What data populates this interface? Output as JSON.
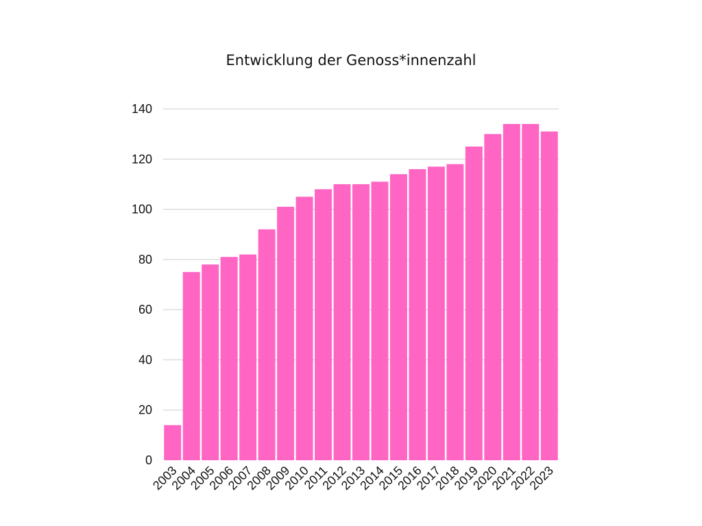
{
  "chart_data": {
    "type": "bar",
    "title": "Entwicklung der Genoss*innenzahl",
    "xlabel": "",
    "ylabel": "",
    "categories": [
      "2003",
      "2004",
      "2005",
      "2006",
      "2007",
      "2008",
      "2009",
      "2010",
      "2011",
      "2012",
      "2013",
      "2014",
      "2015",
      "2016",
      "2017",
      "2018",
      "2019",
      "2020",
      "2021",
      "2022",
      "2023"
    ],
    "values": [
      14,
      75,
      78,
      81,
      82,
      92,
      101,
      105,
      108,
      110,
      110,
      111,
      114,
      116,
      117,
      118,
      125,
      130,
      134,
      134,
      131
    ],
    "ylim": [
      0,
      140
    ],
    "yticks": [
      0,
      20,
      40,
      60,
      80,
      100,
      120,
      140
    ],
    "grid": true,
    "legend": "none",
    "bar_color": "#ff66c4",
    "grid_color": "#cccccc"
  }
}
